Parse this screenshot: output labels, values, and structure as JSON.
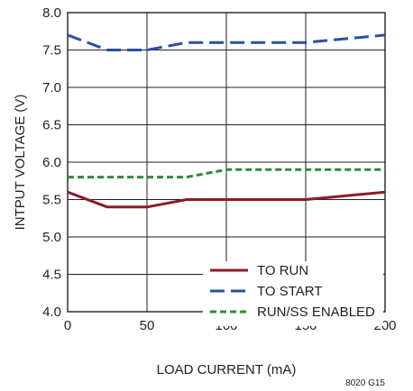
{
  "chart_data": {
    "type": "line",
    "xlabel": "LOAD CURRENT (mA)",
    "ylabel": "INTPUT VOLTAGE (V)",
    "xlim": [
      0,
      200
    ],
    "ylim": [
      4.0,
      8.0
    ],
    "x_ticks": [
      "0",
      "50",
      "100",
      "150",
      "200"
    ],
    "y_ticks": [
      "4.0",
      "4.5",
      "5.0",
      "5.5",
      "6.0",
      "6.5",
      "7.0",
      "7.5",
      "8.0"
    ],
    "grid": true,
    "legend_position": "bottom-right",
    "series": [
      {
        "name": "TO RUN",
        "color": "#8b1a2b",
        "dash": "solid",
        "x": [
          0,
          25,
          50,
          75,
          100,
          150,
          200
        ],
        "y": [
          5.6,
          5.4,
          5.4,
          5.5,
          5.5,
          5.5,
          5.6
        ]
      },
      {
        "name": "TO START",
        "color": "#2b4fa8",
        "dash": "long-dash",
        "x": [
          0,
          25,
          50,
          75,
          100,
          150,
          200
        ],
        "y": [
          7.7,
          7.5,
          7.5,
          7.6,
          7.6,
          7.6,
          7.7
        ]
      },
      {
        "name": "RUN/SS ENABLED",
        "color": "#2e8b3d",
        "dash": "short-dash",
        "x": [
          0,
          25,
          50,
          75,
          100,
          150,
          200
        ],
        "y": [
          5.8,
          5.8,
          5.8,
          5.8,
          5.9,
          5.9,
          5.9
        ]
      }
    ],
    "figure_id": "8020 G15"
  }
}
